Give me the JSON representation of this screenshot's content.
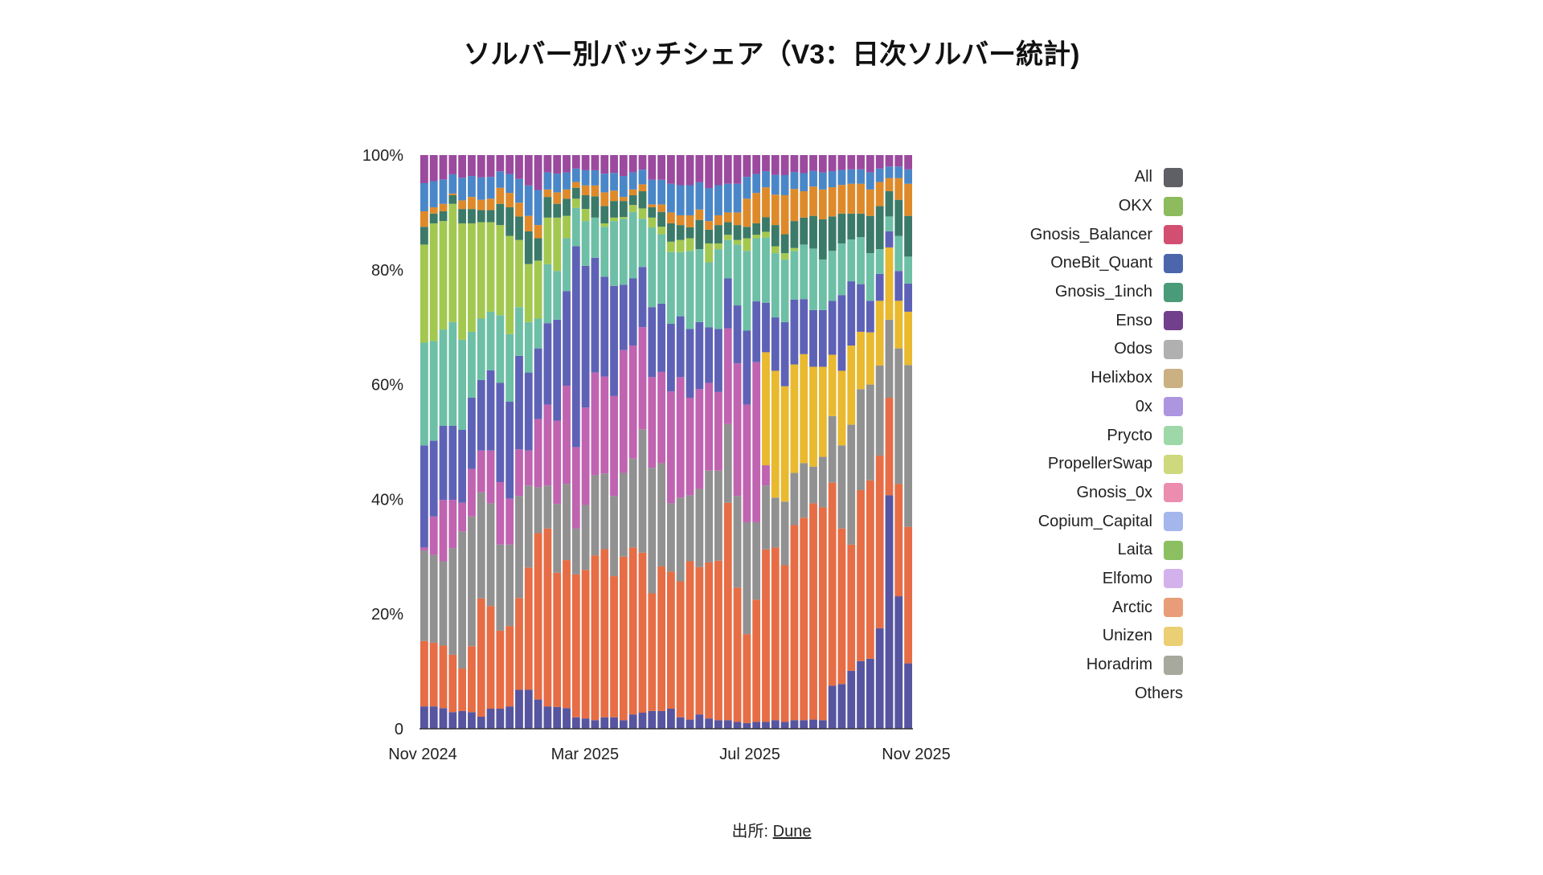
{
  "title": "ソルバー別バッチシェア（V3：日次ソルバー統計)",
  "footer": {
    "prefix": "出所: ",
    "link_label": "Dune"
  },
  "legend": [
    {
      "label": "All",
      "color": "#5f5f66"
    },
    {
      "label": "OKX",
      "color": "#8dbb5e"
    },
    {
      "label": "Gnosis_Balancer",
      "color": "#d24f72"
    },
    {
      "label": "OneBit_Quant",
      "color": "#4b66ab"
    },
    {
      "label": "Gnosis_1inch",
      "color": "#4a9b78"
    },
    {
      "label": "Enso",
      "color": "#723f8c"
    },
    {
      "label": "Odos",
      "color": "#b0b0b0"
    },
    {
      "label": "Helixbox",
      "color": "#cbb182"
    },
    {
      "label": "0x",
      "color": "#ad95e0"
    },
    {
      "label": "Prycto",
      "color": "#9fd8a8"
    },
    {
      "label": "PropellerSwap",
      "color": "#cdd97c"
    },
    {
      "label": "Gnosis_0x",
      "color": "#ec8db0"
    },
    {
      "label": "Copium_Capital",
      "color": "#a4b6ec"
    },
    {
      "label": "Laita",
      "color": "#8cbf62"
    },
    {
      "label": "Elfomo",
      "color": "#d3b2ec"
    },
    {
      "label": "Arctic",
      "color": "#e89d78"
    },
    {
      "label": "Unizen",
      "color": "#ebcf74"
    },
    {
      "label": "Horadrim",
      "color": "#a6a99b"
    },
    {
      "label": "Others",
      "color": null
    }
  ],
  "chart_data": {
    "type": "bar",
    "stacked": true,
    "title": "ソルバー別バッチシェア（V3：日次ソルバー統計)",
    "xlabel": "",
    "ylabel": "",
    "ylim": [
      0,
      100
    ],
    "y_ticks": [
      {
        "value": 0,
        "label": "0"
      },
      {
        "value": 20,
        "label": "20%"
      },
      {
        "value": 40,
        "label": "40%"
      },
      {
        "value": 60,
        "label": "60%"
      },
      {
        "value": 80,
        "label": "80%"
      },
      {
        "value": 100,
        "label": "100%"
      }
    ],
    "x_range": [
      "2024-11-01",
      "2025-11-01"
    ],
    "x_ticks": [
      {
        "date": "2024-11-01",
        "label": "Nov 2024"
      },
      {
        "date": "2025-03-01",
        "label": "Mar 2025"
      },
      {
        "date": "2025-07-01",
        "label": "Jul 2025"
      },
      {
        "date": "2025-11-01",
        "label": "Nov 2025"
      }
    ],
    "grid": false,
    "legend_position": "right",
    "categories": [
      "2024-11-04",
      "2024-11-11",
      "2024-11-18",
      "2024-11-25",
      "2024-12-02",
      "2024-12-09",
      "2024-12-16",
      "2024-12-23",
      "2024-12-30",
      "2025-01-06",
      "2025-01-13",
      "2025-01-20",
      "2025-01-27",
      "2025-02-03",
      "2025-02-10",
      "2025-02-17",
      "2025-02-24",
      "2025-03-03",
      "2025-03-10",
      "2025-03-17",
      "2025-03-24",
      "2025-03-31",
      "2025-04-07",
      "2025-04-14",
      "2025-04-21",
      "2025-04-28",
      "2025-05-05",
      "2025-05-12",
      "2025-05-19",
      "2025-05-26",
      "2025-06-02",
      "2025-06-09",
      "2025-06-16",
      "2025-06-23",
      "2025-06-30",
      "2025-07-07",
      "2025-07-14",
      "2025-07-21",
      "2025-07-28",
      "2025-08-04",
      "2025-08-11",
      "2025-08-18",
      "2025-08-25",
      "2025-09-01",
      "2025-09-08",
      "2025-09-15",
      "2025-09-22",
      "2025-09-29",
      "2025-10-06",
      "2025-10-13",
      "2025-10-20",
      "2025-10-27"
    ],
    "series": [
      {
        "color": "#57559f",
        "values": [
          3.9,
          3.9,
          3.6,
          2.9,
          3.1,
          2.9,
          2.1,
          3.5,
          3.5,
          3.9,
          6.8,
          6.8,
          5.1,
          3.9,
          3.8,
          3.6,
          2.0,
          1.8,
          1.5,
          2.0,
          2.0,
          1.5,
          2.5,
          2.8,
          3.1,
          3.1,
          3.5,
          2.0,
          1.6,
          2.5,
          1.8,
          1.5,
          1.5,
          1.2,
          1.0,
          1.2,
          1.2,
          1.5,
          1.2,
          1.5,
          1.5,
          1.6,
          1.5,
          7.5,
          7.8,
          10.1,
          11.8,
          12.2,
          17.5,
          40.7,
          23.1,
          11.4
        ]
      },
      {
        "color": "#e66d45",
        "values": [
          11.4,
          11.1,
          10.9,
          10.0,
          7.4,
          11.5,
          20.6,
          17.9,
          13.6,
          14.0,
          16.0,
          21.3,
          29.0,
          31.0,
          23.4,
          25.8,
          24.9,
          25.9,
          28.7,
          29.3,
          24.6,
          28.5,
          29.1,
          27.9,
          20.5,
          25.2,
          23.9,
          23.7,
          27.6,
          25.7,
          27.2,
          27.8,
          37.9,
          23.4,
          15.5,
          21.3,
          29.9,
          30.1,
          27.3,
          34.0,
          35.3,
          37.7,
          37.1,
          35.4,
          27.1,
          22.0,
          29.8,
          31.1,
          30.1,
          17.0,
          19.6,
          23.8
        ]
      },
      {
        "color": "#919191",
        "values": [
          15.8,
          15.3,
          14.7,
          18.6,
          23.9,
          22.6,
          18.5,
          17.9,
          15.0,
          14.2,
          17.8,
          14.3,
          8.0,
          7.5,
          12.0,
          13.3,
          8.0,
          11.3,
          14.0,
          13.2,
          14.0,
          14.6,
          15.5,
          21.5,
          21.9,
          18.0,
          11.9,
          14.6,
          11.5,
          13.6,
          16.0,
          15.7,
          13.7,
          16.0,
          19.5,
          13.5,
          11.1,
          8.7,
          11.1,
          9.1,
          9.5,
          6.4,
          8.8,
          11.6,
          14.5,
          20.9,
          17.6,
          16.7,
          15.7,
          13.6,
          23.6,
          28.2
        ]
      },
      {
        "color": "#c063b0",
        "values": [
          0.5,
          6.7,
          10.7,
          8.4,
          5.0,
          8.3,
          7.3,
          9.2,
          10.9,
          8.0,
          8.1,
          6.1,
          11.9,
          14.1,
          14.5,
          17.1,
          14.2,
          17.0,
          17.9,
          16.9,
          17.4,
          21.4,
          19.7,
          17.8,
          15.8,
          15.9,
          19.5,
          21.0,
          17.0,
          17.4,
          15.3,
          13.7,
          16.7,
          23.1,
          20.5,
          27.9,
          3.5,
          0,
          0,
          0,
          0,
          0,
          0,
          0,
          0,
          0,
          0,
          0,
          0,
          0,
          0,
          0
        ]
      },
      {
        "color": "#e9b92f",
        "values": [
          0,
          0,
          0,
          0,
          0,
          0,
          0,
          0,
          0,
          0,
          0,
          0,
          0,
          0,
          0,
          0,
          0,
          0,
          0,
          0,
          0,
          0,
          0,
          0,
          0,
          0,
          0,
          0,
          0,
          0,
          0,
          0,
          0,
          0,
          0,
          0,
          19.6,
          22.1,
          20.1,
          18.9,
          19.0,
          17.4,
          15.7,
          10.7,
          13.0,
          13.8,
          10.0,
          9.1,
          11.3,
          12.6,
          8.3,
          9.3
        ]
      },
      {
        "color": "#5e62b6",
        "values": [
          17.8,
          13.2,
          12.9,
          12.9,
          12.7,
          12.4,
          12.3,
          14.0,
          17.3,
          16.9,
          16.3,
          13.6,
          12.3,
          14.2,
          17.6,
          16.5,
          35.0,
          24.7,
          20.0,
          17.4,
          19.2,
          11.4,
          11.7,
          10.5,
          12.2,
          11.9,
          11.8,
          10.6,
          12.0,
          11.7,
          9.7,
          11.0,
          8.7,
          10.1,
          12.9,
          10.6,
          8.6,
          9.3,
          11.2,
          11.3,
          9.6,
          9.9,
          9.9,
          9.4,
          13.2,
          11.2,
          8.3,
          5.5,
          4.7,
          2.8,
          5.2,
          4.9
        ]
      },
      {
        "color": "#6dbfa6",
        "values": [
          17.9,
          17.4,
          16.8,
          18.1,
          15.7,
          11.5,
          10.7,
          10.2,
          11.8,
          11.8,
          8.5,
          8.8,
          5.2,
          10.3,
          8.5,
          9.2,
          6.7,
          7.8,
          7.0,
          8.7,
          11.3,
          11.5,
          11.6,
          8.4,
          13.9,
          12.1,
          12.5,
          11.2,
          13.6,
          12.7,
          11.3,
          13.9,
          6.7,
          10.6,
          13.9,
          11.0,
          11.3,
          11.2,
          10.9,
          8.5,
          9.5,
          10.7,
          8.8,
          8.7,
          9.0,
          7.3,
          8.2,
          8.3,
          4.3,
          2.6,
          6.1,
          4.7
        ]
      },
      {
        "color": "#a3c850",
        "values": [
          17.1,
          20.5,
          18.9,
          20.6,
          20.3,
          18.9,
          16.8,
          15.6,
          15.7,
          17.1,
          11.7,
          10.1,
          10.1,
          8.1,
          9.3,
          3.9,
          1.6,
          2.1,
          0,
          0.6,
          0.6,
          0.3,
          1.2,
          1.8,
          1.7,
          1.3,
          1.8,
          2.1,
          2.2,
          0,
          3.3,
          1.0,
          0.9,
          0.8,
          2.2,
          0.6,
          1.0,
          1.2,
          1.1,
          0.5,
          0,
          0,
          0,
          0,
          0,
          0,
          0,
          0,
          0,
          0,
          0,
          0
        ]
      },
      {
        "color": "#3b7a68",
        "values": [
          3.1,
          1.7,
          1.7,
          1.5,
          2.5,
          2.5,
          2.1,
          2.1,
          3.7,
          5.0,
          4.1,
          5.7,
          3.9,
          3.6,
          2.4,
          3.0,
          1.9,
          2.4,
          3.7,
          3.0,
          2.9,
          2.8,
          1.7,
          3.0,
          1.8,
          2.6,
          3.2,
          2.6,
          1.9,
          5.1,
          2.4,
          3.2,
          2.2,
          2.6,
          2.0,
          2.0,
          2.5,
          3.7,
          3.3,
          4.7,
          4.7,
          5.7,
          7.0,
          6.0,
          5.2,
          4.5,
          4.1,
          6.5,
          7.5,
          4.4,
          6.3,
          7.1
        ]
      },
      {
        "color": "#de8a2a",
        "values": [
          2.7,
          1.1,
          1.3,
          0.3,
          1.5,
          2.1,
          1.8,
          2.0,
          2.8,
          2.5,
          2.4,
          2.7,
          2.3,
          1.3,
          2.0,
          1.6,
          1.0,
          1.7,
          1.9,
          2.4,
          1.8,
          0.7,
          1.0,
          1.2,
          0.5,
          1.3,
          1.9,
          1.7,
          2.1,
          1.8,
          1.5,
          1.7,
          1.7,
          2.2,
          4.9,
          5.3,
          5.2,
          5.3,
          6.8,
          5.6,
          4.6,
          5.1,
          5.2,
          5.1,
          5.0,
          5.2,
          5.2,
          4.6,
          4.2,
          2.3,
          3.8,
          5.6
        ]
      },
      {
        "color": "#4a87c8",
        "values": [
          4.9,
          4.55,
          4.25,
          3.35,
          3.95,
          3.65,
          3.9,
          3.8,
          2.85,
          3.3,
          4.15,
          5.3,
          6.1,
          3.0,
          3.25,
          3.0,
          2.35,
          2.65,
          2.65,
          3.25,
          3.1,
          3.65,
          3.0,
          2.55,
          4.3,
          4.3,
          5.0,
          5.25,
          5.25,
          4.75,
          5.75,
          5.25,
          5.0,
          5.0,
          3.8,
          3.3,
          2.8,
          3.45,
          3.5,
          2.95,
          3.15,
          2.75,
          3.0,
          2.8,
          2.6,
          2.5,
          2.5,
          3.0,
          2.35,
          2.0,
          2.0,
          2.5
        ]
      },
      {
        "color": "#9b4a9e",
        "values": [
          4.9,
          4.55,
          4.25,
          3.35,
          3.95,
          3.65,
          3.9,
          3.8,
          2.85,
          3.3,
          4.15,
          5.3,
          6.1,
          3.0,
          3.25,
          3.0,
          2.35,
          2.65,
          2.65,
          3.25,
          3.1,
          3.65,
          3.0,
          2.55,
          4.3,
          4.3,
          5.0,
          5.25,
          5.25,
          4.75,
          5.75,
          5.25,
          5.0,
          5.0,
          3.8,
          3.3,
          2.8,
          3.45,
          3.5,
          2.95,
          3.15,
          2.75,
          3.0,
          2.8,
          2.6,
          2.5,
          2.5,
          3.0,
          2.35,
          2.0,
          2.0,
          2.5
        ]
      }
    ]
  }
}
